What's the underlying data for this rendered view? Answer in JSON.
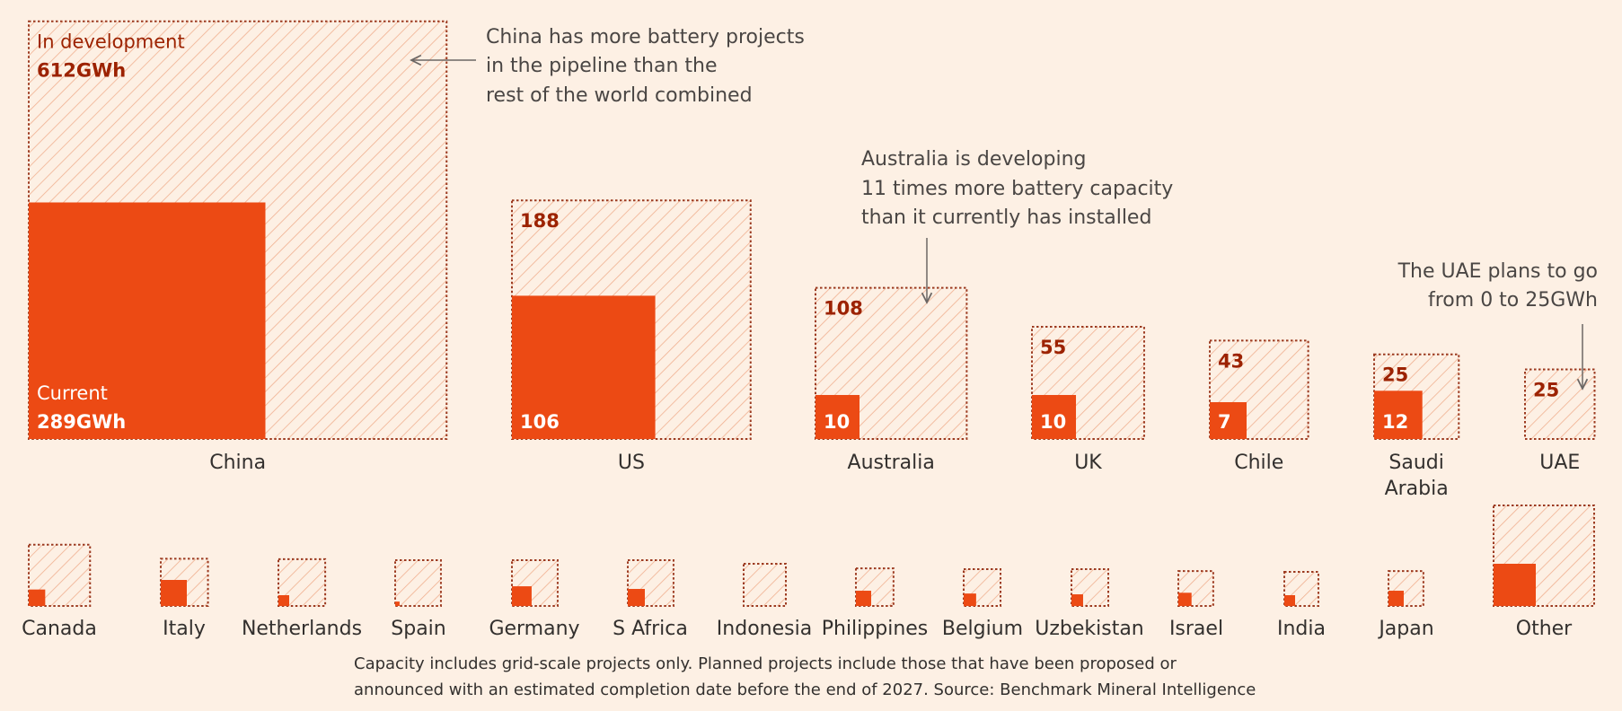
{
  "chart_data": {
    "type": "proportional-area-squares",
    "title": "",
    "unit": "GWh",
    "encoding": "Square area proportional to capacity; outer dotted hatched square = current + in development, solid inner square = current",
    "legend": {
      "development_label": "In development",
      "current_label": "Current"
    },
    "colors": {
      "background": "#fdf0e4",
      "current": "#ec4a14",
      "development_hatch": "#f0b090",
      "development_border": "#9c3a20",
      "development_text": "#9c2200",
      "annotation_text": "#4a4644",
      "label_text": "#33302e"
    },
    "main_countries": [
      {
        "name": "China",
        "current": 289,
        "development": 612,
        "current_label": "289GWh",
        "development_label": "612GWh"
      },
      {
        "name": "US",
        "current": 106,
        "development": 188,
        "current_label": "106",
        "development_label": "188"
      },
      {
        "name": "Australia",
        "current": 10,
        "development": 108,
        "current_label": "10",
        "development_label": "108"
      },
      {
        "name": "UK",
        "current": 10,
        "development": 55,
        "current_label": "10",
        "development_label": "55"
      },
      {
        "name": "Chile",
        "current": 7,
        "development": 43,
        "current_label": "7",
        "development_label": "43"
      },
      {
        "name": "Saudi Arabia",
        "name_lines": [
          "Saudi",
          "Arabia"
        ],
        "current": 12,
        "development": 25,
        "current_label": "12",
        "development_label": "25"
      },
      {
        "name": "UAE",
        "current": 0,
        "development": 25,
        "current_label": "",
        "development_label": "25"
      }
    ],
    "other_countries": [
      {
        "name": "Canada",
        "current": 1.4,
        "development": 18
      },
      {
        "name": "Italy",
        "current": 3.5,
        "development": 8
      },
      {
        "name": "Netherlands",
        "current": 0.6,
        "development": 10.7
      },
      {
        "name": "Spain",
        "current": 0.1,
        "development": 10.7
      },
      {
        "name": "Germany",
        "current": 2,
        "development": 8.8
      },
      {
        "name": "S Africa",
        "current": 1.5,
        "development": 9.3
      },
      {
        "name": "Indonesia",
        "current": 0,
        "development": 9.2
      },
      {
        "name": "Philippines",
        "current": 1.2,
        "development": 6.1
      },
      {
        "name": "Belgium",
        "current": 0.8,
        "development": 6.2
      },
      {
        "name": "Uzbekistan",
        "current": 0.7,
        "development": 6.3
      },
      {
        "name": "Israel",
        "current": 0.9,
        "development": 5.4
      },
      {
        "name": "India",
        "current": 0.6,
        "development": 5.4
      },
      {
        "name": "Japan",
        "current": 1.2,
        "development": 5.1
      },
      {
        "name": "Other",
        "current": 9.2,
        "development": 43
      }
    ],
    "annotations": [
      {
        "target": "China",
        "lines": [
          "China has more battery projects",
          "in the pipeline than the",
          "rest of the world combined"
        ]
      },
      {
        "target": "Australia",
        "lines": [
          "Australia is developing",
          "11 times more battery capacity",
          "than it currently has installed"
        ]
      },
      {
        "target": "UAE",
        "lines": [
          "The UAE plans to go",
          "from 0 to 25GWh"
        ]
      }
    ],
    "footer": [
      "Capacity includes grid-scale projects only. Planned projects include those that have been proposed or",
      "announced with an estimated completion date before the end of 2027. Source: Benchmark Mineral Intelligence"
    ]
  }
}
